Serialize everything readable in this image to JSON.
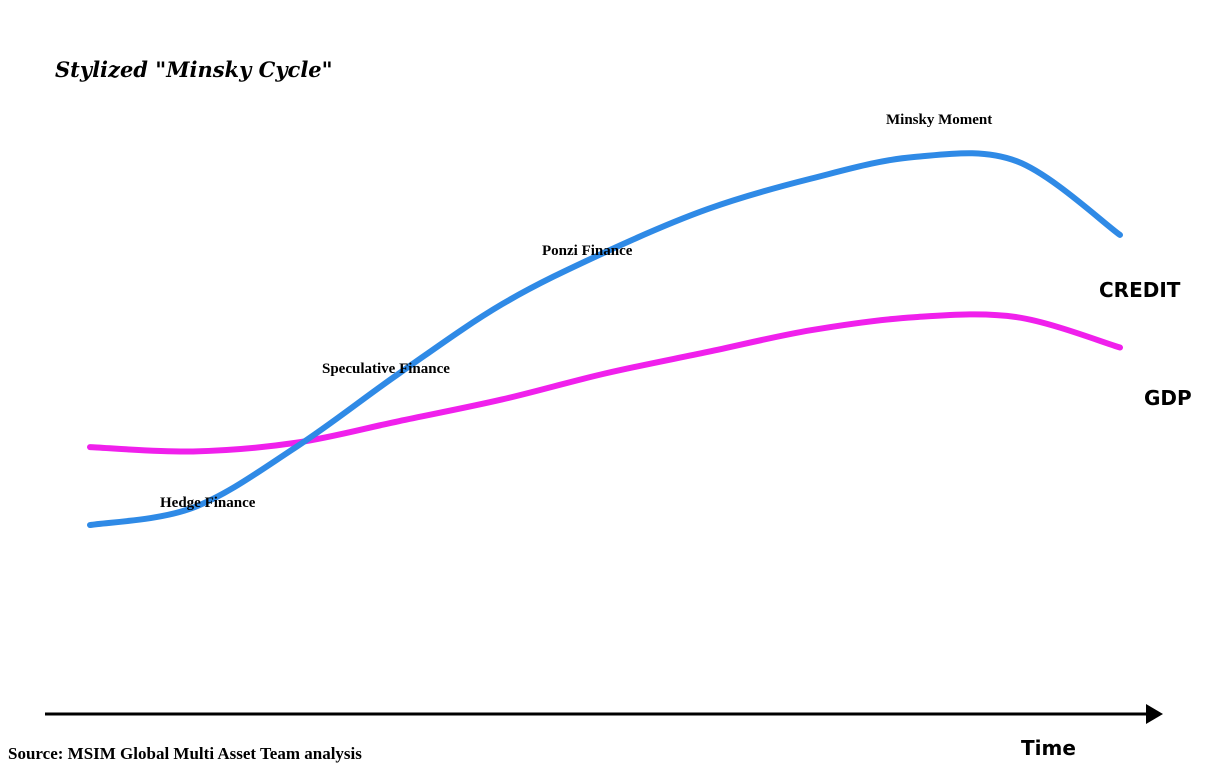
{
  "chart_data": {
    "type": "line",
    "title": "Stylized \"Minsky Cycle\"",
    "xlabel": "Time",
    "ylabel": "",
    "source": "Source: MSIM Global Multi Asset Team analysis",
    "grid": false,
    "x": [
      0,
      10,
      20,
      30,
      40,
      50,
      60,
      70,
      80,
      90,
      100
    ],
    "xlim": [
      0,
      100
    ],
    "ylim": [
      0,
      100
    ],
    "series": [
      {
        "name": "CREDIT",
        "color": "#2f8ae6",
        "values": [
          15,
          19,
          33,
          50,
          66,
          78,
          88,
          95,
          100,
          99,
          82
        ]
      },
      {
        "name": "GDP",
        "color": "#f020ec",
        "values": [
          33,
          32,
          34,
          39,
          44,
          50,
          55,
          60,
          63,
          63,
          56
        ]
      }
    ],
    "annotations": [
      {
        "label": "Hedge Finance",
        "x": 17
      },
      {
        "label": "Speculative Finance",
        "x": 31
      },
      {
        "label": "Ponzi Finance",
        "x": 48
      },
      {
        "label": "Minsky Moment",
        "x": 86
      }
    ],
    "axis_color": "#000000"
  }
}
